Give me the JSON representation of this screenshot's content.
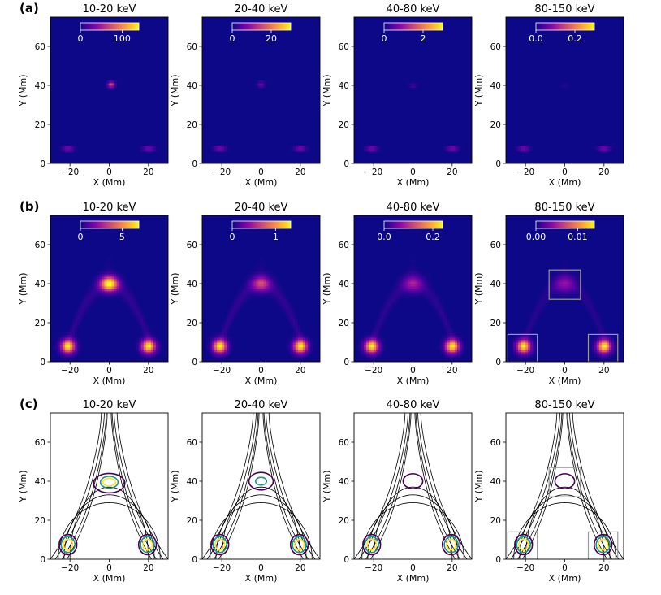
{
  "figure": {
    "row_labels": [
      "(a)",
      "(b)",
      "(c)"
    ],
    "energy_bands": [
      "10-20 keV",
      "20-40 keV",
      "40-80 keV",
      "80-150 keV"
    ],
    "xlabel": "X (Mm)",
    "ylabel": "Y (Mm)",
    "colors": {
      "background": "#ffffff",
      "map_bg": "#0d0887",
      "field_lines": "#000000",
      "contour_outer": "#440154",
      "contour_mid": "#21918c",
      "contour_inner": "#fde725",
      "box": "#999999"
    },
    "colormap": "plasma"
  },
  "chart_data": [
    {
      "type": "heatmap",
      "row": "(a)",
      "title": "10-20 keV",
      "xlim": [
        -30,
        30
      ],
      "ylim": [
        0,
        75
      ],
      "xticks": [
        -20,
        0,
        20
      ],
      "yticks": [
        0,
        20,
        40,
        60
      ],
      "colorbar": {
        "ticks": [
          "0",
          "100"
        ],
        "range": [
          0,
          140
        ]
      },
      "sources": [
        {
          "x": -21,
          "y": 7.5,
          "sx": 2.0,
          "sy": 0.35,
          "amp": 1.0
        },
        {
          "x": 20,
          "y": 7.5,
          "sx": 2.0,
          "sy": 0.35,
          "amp": 1.0
        },
        {
          "x": 1,
          "y": 40.5,
          "sx": 1.2,
          "sy": 1.0,
          "amp": 0.55
        }
      ]
    },
    {
      "type": "heatmap",
      "row": "(a)",
      "title": "20-40 keV",
      "xlim": [
        -30,
        30
      ],
      "ylim": [
        0,
        75
      ],
      "xticks": [
        -20,
        0,
        20
      ],
      "yticks": [
        0,
        20,
        40,
        60
      ],
      "colorbar": {
        "ticks": [
          "0",
          "20"
        ],
        "range": [
          0,
          30
        ]
      },
      "sources": [
        {
          "x": -21,
          "y": 7.5,
          "sx": 2.0,
          "sy": 0.35,
          "amp": 1.0
        },
        {
          "x": 20,
          "y": 7.5,
          "sx": 2.0,
          "sy": 0.35,
          "amp": 1.0
        },
        {
          "x": 0,
          "y": 40.5,
          "sx": 1.3,
          "sy": 1.0,
          "amp": 0.2
        }
      ]
    },
    {
      "type": "heatmap",
      "row": "(a)",
      "title": "40-80 keV",
      "xlim": [
        -30,
        30
      ],
      "ylim": [
        0,
        75
      ],
      "xticks": [
        -20,
        0,
        20
      ],
      "yticks": [
        0,
        20,
        40,
        60
      ],
      "colorbar": {
        "ticks": [
          "0",
          "2"
        ],
        "range": [
          0,
          3
        ]
      },
      "sources": [
        {
          "x": -21,
          "y": 7.5,
          "sx": 2.0,
          "sy": 0.35,
          "amp": 1.0
        },
        {
          "x": 20,
          "y": 7.5,
          "sx": 2.0,
          "sy": 0.35,
          "amp": 1.0
        },
        {
          "x": 0,
          "y": 40,
          "sx": 1.3,
          "sy": 1.0,
          "amp": 0.1
        }
      ]
    },
    {
      "type": "heatmap",
      "row": "(a)",
      "title": "80-150 keV",
      "xlim": [
        -30,
        30
      ],
      "ylim": [
        0,
        75
      ],
      "xticks": [
        -20,
        0,
        20
      ],
      "yticks": [
        0,
        20,
        40,
        60
      ],
      "colorbar": {
        "ticks": [
          "0.0",
          "0.2"
        ],
        "range": [
          0,
          0.3
        ]
      },
      "sources": [
        {
          "x": -21,
          "y": 7.5,
          "sx": 2.0,
          "sy": 0.35,
          "amp": 1.0
        },
        {
          "x": 20,
          "y": 7.5,
          "sx": 2.0,
          "sy": 0.35,
          "amp": 1.0
        },
        {
          "x": 0,
          "y": 40,
          "sx": 1.3,
          "sy": 1.0,
          "amp": 0.05
        }
      ]
    },
    {
      "type": "heatmap",
      "row": "(b)",
      "title": "10-20 keV",
      "xlim": [
        -30,
        30
      ],
      "ylim": [
        0,
        75
      ],
      "xticks": [
        -20,
        0,
        20
      ],
      "yticks": [
        0,
        20,
        40,
        60
      ],
      "colorbar": {
        "ticks": [
          "0",
          "5"
        ],
        "range": [
          0,
          7
        ]
      },
      "sources": [
        {
          "x": -21,
          "y": 8,
          "sx": 2.4,
          "sy": 2.4,
          "amp": 0.95
        },
        {
          "x": 20,
          "y": 8,
          "sx": 2.4,
          "sy": 2.4,
          "amp": 0.95
        },
        {
          "x": 0,
          "y": 40,
          "sx": 3.0,
          "sy": 2.5,
          "amp": 1.0
        }
      ],
      "arch_glow": 0.07
    },
    {
      "type": "heatmap",
      "row": "(b)",
      "title": "20-40 keV",
      "xlim": [
        -30,
        30
      ],
      "ylim": [
        0,
        75
      ],
      "xticks": [
        -20,
        0,
        20
      ],
      "yticks": [
        0,
        20,
        40,
        60
      ],
      "colorbar": {
        "ticks": [
          "0",
          "1"
        ],
        "range": [
          0,
          1.35
        ]
      },
      "sources": [
        {
          "x": -21,
          "y": 8,
          "sx": 2.4,
          "sy": 2.4,
          "amp": 0.95
        },
        {
          "x": 20,
          "y": 8,
          "sx": 2.4,
          "sy": 2.4,
          "amp": 0.95
        },
        {
          "x": 0,
          "y": 40,
          "sx": 3.2,
          "sy": 2.6,
          "amp": 0.45
        }
      ],
      "arch_glow": 0.07
    },
    {
      "type": "heatmap",
      "row": "(b)",
      "title": "40-80 keV",
      "xlim": [
        -30,
        30
      ],
      "ylim": [
        0,
        75
      ],
      "xticks": [
        -20,
        0,
        20
      ],
      "yticks": [
        0,
        20,
        40,
        60
      ],
      "colorbar": {
        "ticks": [
          "0.0",
          "0.2"
        ],
        "range": [
          0,
          0.24
        ]
      },
      "sources": [
        {
          "x": -21,
          "y": 8,
          "sx": 2.4,
          "sy": 2.4,
          "amp": 0.95
        },
        {
          "x": 20,
          "y": 8,
          "sx": 2.4,
          "sy": 2.4,
          "amp": 0.95
        },
        {
          "x": 0,
          "y": 40,
          "sx": 3.4,
          "sy": 2.8,
          "amp": 0.3
        }
      ],
      "arch_glow": 0.06
    },
    {
      "type": "heatmap",
      "row": "(b)",
      "title": "80-150 keV",
      "xlim": [
        -30,
        30
      ],
      "ylim": [
        0,
        75
      ],
      "xticks": [
        -20,
        0,
        20
      ],
      "yticks": [
        0,
        20,
        40,
        60
      ],
      "colorbar": {
        "ticks": [
          "0.00",
          "0.01"
        ],
        "range": [
          0,
          0.014
        ]
      },
      "sources": [
        {
          "x": -21,
          "y": 8,
          "sx": 2.4,
          "sy": 2.4,
          "amp": 0.95
        },
        {
          "x": 20,
          "y": 8,
          "sx": 2.4,
          "sy": 2.4,
          "amp": 0.95
        },
        {
          "x": 0,
          "y": 40,
          "sx": 3.5,
          "sy": 2.9,
          "amp": 0.25
        }
      ],
      "arch_glow": 0.05,
      "boxes": [
        {
          "x0": -8,
          "x1": 8,
          "y0": 32,
          "y1": 47
        },
        {
          "x0": -29,
          "x1": -14,
          "y0": 0,
          "y1": 14
        },
        {
          "x0": 12,
          "x1": 27,
          "y0": 0,
          "y1": 14
        }
      ]
    },
    {
      "type": "contour",
      "row": "(c)",
      "title": "10-20 keV",
      "xlim": [
        -30,
        30
      ],
      "ylim": [
        0,
        75
      ],
      "xticks": [
        -20,
        0,
        20
      ],
      "yticks": [
        0,
        20,
        40,
        60
      ],
      "loop_contours": [
        {
          "level": "outer",
          "x": 0,
          "y": 39,
          "rx": 8,
          "ry": 5
        },
        {
          "level": "mid",
          "x": 0,
          "y": 39.5,
          "rx": 4.5,
          "ry": 3
        },
        {
          "level": "inner",
          "x": 0,
          "y": 39.5,
          "rx": 3.2,
          "ry": 2
        }
      ],
      "foot_contours": [
        {
          "x": -21,
          "y": 7.5
        },
        {
          "x": 19.5,
          "y": 7.5
        }
      ]
    },
    {
      "type": "contour",
      "row": "(c)",
      "title": "20-40 keV",
      "xlim": [
        -30,
        30
      ],
      "ylim": [
        0,
        75
      ],
      "xticks": [
        -20,
        0,
        20
      ],
      "yticks": [
        0,
        20,
        40,
        60
      ],
      "loop_contours": [
        {
          "level": "outer",
          "x": 0,
          "y": 40,
          "rx": 6.2,
          "ry": 4.5
        },
        {
          "level": "mid",
          "x": 0,
          "y": 40,
          "rx": 2.8,
          "ry": 2
        }
      ],
      "foot_contours": [
        {
          "x": -21,
          "y": 7.5
        },
        {
          "x": 19.5,
          "y": 7.5
        }
      ]
    },
    {
      "type": "contour",
      "row": "(c)",
      "title": "40-80 keV",
      "xlim": [
        -30,
        30
      ],
      "ylim": [
        0,
        75
      ],
      "xticks": [
        -20,
        0,
        20
      ],
      "yticks": [
        0,
        20,
        40,
        60
      ],
      "loop_contours": [
        {
          "level": "outer",
          "x": 0,
          "y": 40,
          "rx": 5,
          "ry": 3.8
        }
      ],
      "foot_contours": [
        {
          "x": -21,
          "y": 7.5
        },
        {
          "x": 19.5,
          "y": 7.5
        }
      ]
    },
    {
      "type": "contour",
      "row": "(c)",
      "title": "80-150 keV",
      "xlim": [
        -30,
        30
      ],
      "ylim": [
        0,
        75
      ],
      "xticks": [
        -20,
        0,
        20
      ],
      "yticks": [
        0,
        20,
        40,
        60
      ],
      "loop_contours": [
        {
          "level": "outer",
          "x": 0,
          "y": 40,
          "rx": 5,
          "ry": 3.8
        }
      ],
      "foot_contours": [
        {
          "x": -21,
          "y": 7.5
        },
        {
          "x": 19.5,
          "y": 7.5
        }
      ],
      "boxes": [
        {
          "x0": -8,
          "x1": 8,
          "y0": 32,
          "y1": 47
        },
        {
          "x0": -29,
          "x1": -14,
          "y0": 0,
          "y1": 14
        },
        {
          "x0": 12,
          "x1": 27,
          "y0": 0,
          "y1": 14
        }
      ]
    }
  ]
}
